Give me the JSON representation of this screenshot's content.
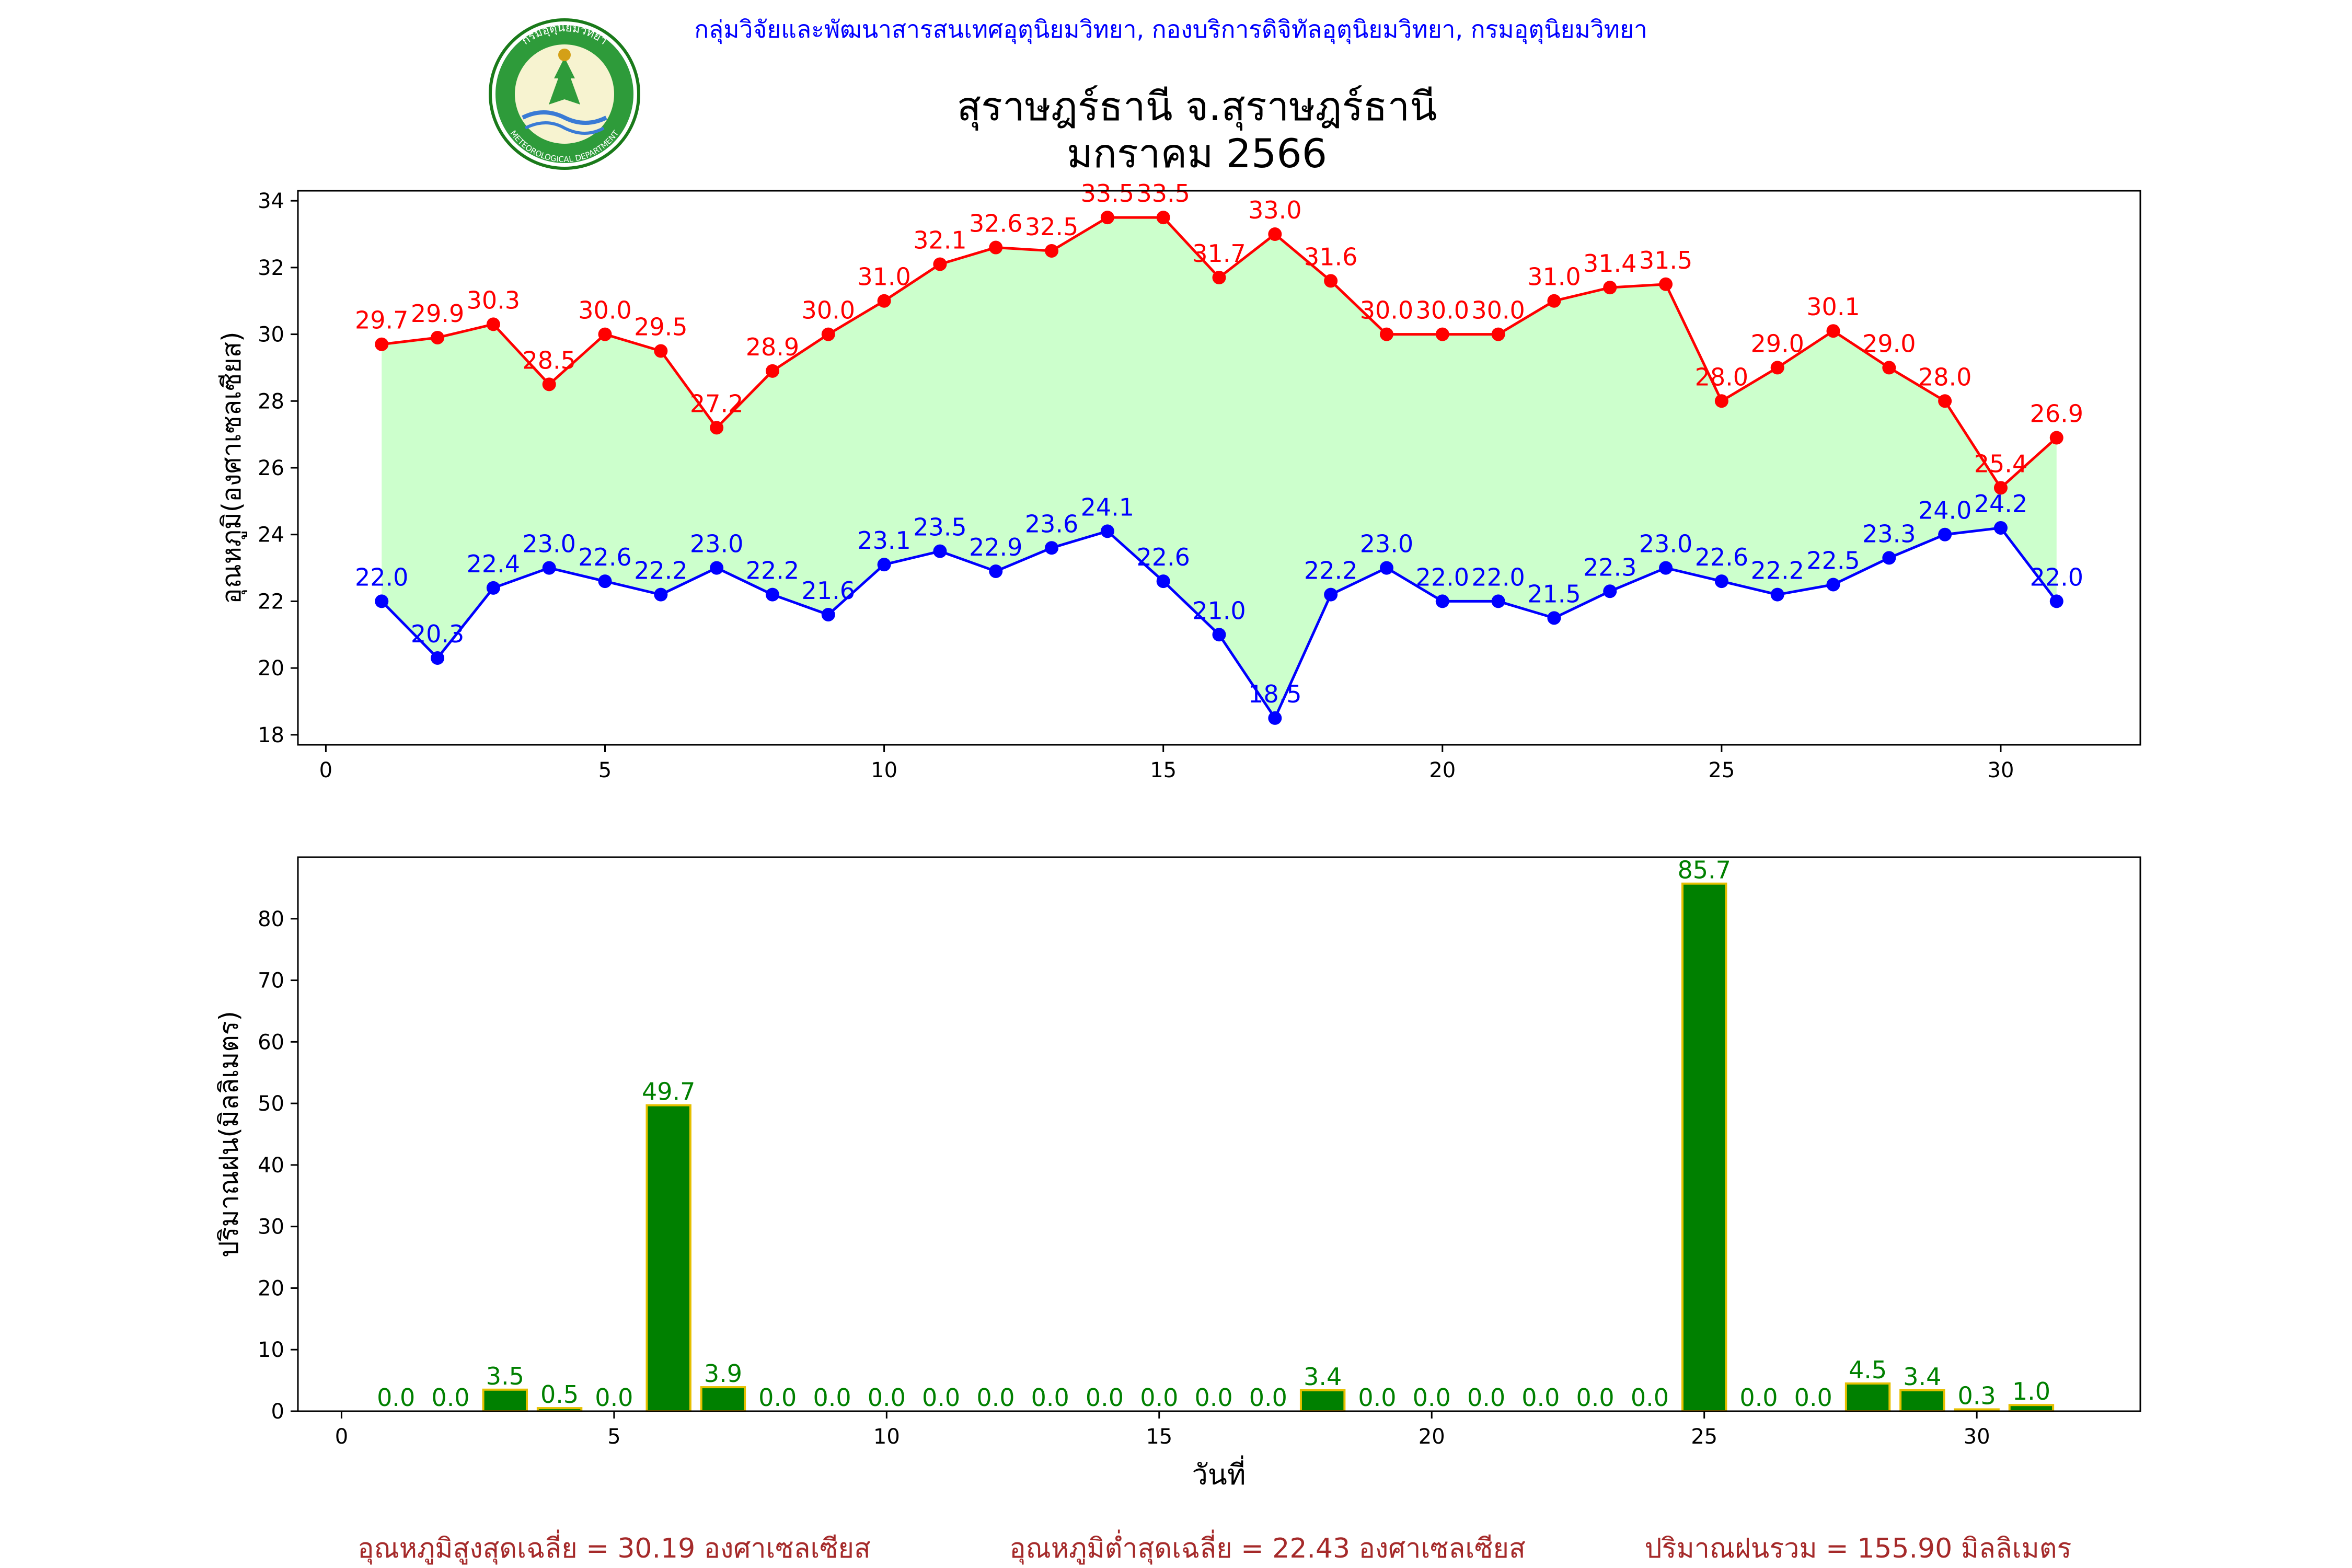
{
  "header": {
    "org_text": "กลุ่มวิจัยและพัฒนาสารสนเทศอุตุนิยมวิทยา, กองบริการดิจิทัลอุตุนิยมวิทยา, กรมอุตุนิยมวิทยา",
    "title_line1": "สุราษฎร์ธานี จ.สุราษฎร์ธานี",
    "title_line2": "มกราคม 2566",
    "logo_top_text": "กรมอุตุนิยมวิทยา",
    "logo_bottom_text": "METEOROLOGICAL DEPARTMENT"
  },
  "colors": {
    "max_line": "#ff0000",
    "min_line": "#0000ff",
    "band_fill": "#ccffcc",
    "rain_bar": "#008000",
    "rain_edge": "#e6c000",
    "rain_label": "#008000",
    "footer_text": "#a52a2a",
    "header_text": "#0000ff"
  },
  "chart_data": [
    {
      "type": "line",
      "ylabel": "อุณหภูมิ(องศาเซลเซียส)",
      "xlim": [
        -0.5,
        32.5
      ],
      "ylim": [
        17.7,
        34.3
      ],
      "xticks": [
        0,
        5,
        10,
        15,
        20,
        25,
        30
      ],
      "yticks": [
        18,
        20,
        22,
        24,
        26,
        28,
        30,
        32,
        34
      ],
      "x": [
        1,
        2,
        3,
        4,
        5,
        6,
        7,
        8,
        9,
        10,
        11,
        12,
        13,
        14,
        15,
        16,
        17,
        18,
        19,
        20,
        21,
        22,
        23,
        24,
        25,
        26,
        27,
        28,
        29,
        30,
        31
      ],
      "series": [
        {
          "key": "max",
          "values": [
            29.7,
            29.9,
            30.3,
            28.5,
            30.0,
            29.5,
            27.2,
            28.9,
            30.0,
            31.0,
            32.1,
            32.6,
            32.5,
            33.5,
            33.5,
            31.7,
            33.0,
            31.6,
            30.0,
            30.0,
            30.0,
            31.0,
            31.4,
            31.5,
            28.0,
            29.0,
            30.1,
            29.0,
            28.0,
            25.4,
            26.9
          ]
        },
        {
          "key": "min",
          "values": [
            22.0,
            20.3,
            22.4,
            23.0,
            22.6,
            22.2,
            23.0,
            22.2,
            21.6,
            23.1,
            23.5,
            22.9,
            23.6,
            24.1,
            22.6,
            21.0,
            18.5,
            22.2,
            23.0,
            22.0,
            22.0,
            21.5,
            22.3,
            23.0,
            22.6,
            22.2,
            22.5,
            23.3,
            24.0,
            24.2,
            22.0
          ]
        }
      ]
    },
    {
      "type": "bar",
      "xlabel": "วันที่",
      "ylabel": "ปริมาณฝน(มิลลิเมตร)",
      "xlim": [
        -0.8,
        33.0
      ],
      "ylim": [
        0,
        90
      ],
      "xticks": [
        0,
        5,
        10,
        15,
        20,
        25,
        30
      ],
      "yticks": [
        0,
        10,
        20,
        30,
        40,
        50,
        60,
        70,
        80
      ],
      "x": [
        1,
        2,
        3,
        4,
        5,
        6,
        7,
        8,
        9,
        10,
        11,
        12,
        13,
        14,
        15,
        16,
        17,
        18,
        19,
        20,
        21,
        22,
        23,
        24,
        25,
        26,
        27,
        28,
        29,
        30,
        31
      ],
      "values": [
        0.0,
        0.0,
        3.5,
        0.5,
        0.0,
        49.7,
        3.9,
        0.0,
        0.0,
        0.0,
        0.0,
        0.0,
        0.0,
        0.0,
        0.0,
        0.0,
        0.0,
        3.4,
        0.0,
        0.0,
        0.0,
        0.0,
        0.0,
        0.0,
        85.7,
        0.0,
        0.0,
        4.5,
        3.4,
        0.3,
        1.0
      ]
    }
  ],
  "footer": {
    "avg_max": "อุณหภูมิสูงสุดเฉลี่ย = 30.19 องศาเซลเซียส",
    "avg_min": "อุณหภูมิต่ำสุดเฉลี่ย = 22.43 องศาเซลเซียส",
    "rain_total": "ปริมาณฝนรวม = 155.90 มิลลิเมตร"
  }
}
